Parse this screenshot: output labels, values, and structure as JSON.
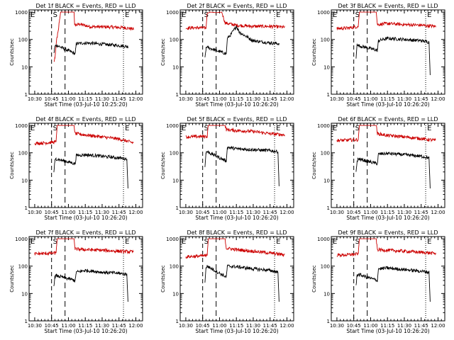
{
  "colors": {
    "events": "#000000",
    "lld": "#cc0000",
    "axis": "#000000"
  },
  "chart_data": [
    {
      "type": "line",
      "title": "Det 1f BLACK = Events, RED = LLD",
      "xlabel": "Start Time (03-Jul-10 10:25:20)",
      "ylabel": "Counts/sec",
      "x_ticks": [
        "10:30",
        "10:45",
        "11:00",
        "11:15",
        "11:30",
        "11:45",
        "12:00"
      ],
      "y_ticks": [
        "1",
        "10",
        "100",
        "1000"
      ],
      "yscale": "log",
      "ylim": [
        1,
        1200
      ],
      "xlim_minutes": [
        -5,
        96
      ],
      "annotations": [
        "E",
        "S",
        "E"
      ],
      "series": [
        {
          "color": "#cc0000",
          "key": [
            [
              17,
              15
            ],
            [
              18,
              20
            ],
            [
              19.5,
              100
            ],
            [
              21,
              200
            ],
            [
              22,
              500
            ],
            [
              23,
              1000
            ],
            [
              35,
              1000
            ],
            [
              35.5,
              330
            ],
            [
              40,
              360
            ],
            [
              50,
              290
            ],
            [
              60,
              290
            ],
            [
              70,
              280
            ],
            [
              80,
              270
            ],
            [
              88,
              240
            ]
          ]
        },
        {
          "color": "#000000",
          "key": [
            [
              17,
              30
            ],
            [
              18,
              55
            ],
            [
              19,
              60
            ],
            [
              20,
              60
            ],
            [
              36,
              30
            ],
            [
              37,
              70
            ],
            [
              45,
              75
            ],
            [
              55,
              70
            ],
            [
              65,
              65
            ],
            [
              75,
              60
            ],
            [
              83,
              55
            ]
          ]
        }
      ]
    },
    {
      "type": "line",
      "title": "Det 2f BLACK = Events, RED = LLD",
      "xlabel": "Start Time (03-Jul-10 10:26:20)",
      "ylabel": "Counts/sec",
      "x_ticks": [
        "10:30",
        "10:45",
        "11:00",
        "11:15",
        "11:30",
        "11:45",
        "12:00"
      ],
      "y_ticks": [
        "1",
        "10",
        "100",
        "1000"
      ],
      "yscale": "log",
      "ylim": [
        1,
        1200
      ],
      "xlim_minutes": [
        -5,
        96
      ],
      "annotations": [
        "E",
        "S",
        "E"
      ],
      "series": [
        {
          "color": "#cc0000",
          "key": [
            [
              0,
              260
            ],
            [
              10,
              270
            ],
            [
              18,
              260
            ],
            [
              19,
              900
            ],
            [
              22,
              1000
            ],
            [
              27,
              950
            ],
            [
              32,
              1000
            ],
            [
              35,
              400
            ],
            [
              45,
              330
            ],
            [
              60,
              300
            ],
            [
              75,
              300
            ],
            [
              88,
              280
            ]
          ]
        },
        {
          "color": "#000000",
          "key": [
            [
              17,
              20
            ],
            [
              18,
              45
            ],
            [
              19,
              55
            ],
            [
              20,
              50
            ],
            [
              36,
              30
            ],
            [
              37,
              110
            ],
            [
              40,
              150
            ],
            [
              45,
              300
            ],
            [
              48,
              180
            ],
            [
              60,
              90
            ],
            [
              75,
              75
            ],
            [
              83,
              70
            ]
          ]
        }
      ]
    },
    {
      "type": "line",
      "title": "Det 3f BLACK = Events, RED = LLD",
      "xlabel": "Start Time (03-Jul-10 10:26:20)",
      "ylabel": "Counts/sec",
      "x_ticks": [
        "10:30",
        "10:45",
        "11:00",
        "11:15",
        "11:30",
        "11:45",
        "12:00"
      ],
      "y_ticks": [
        "1",
        "10",
        "100",
        "1000"
      ],
      "yscale": "log",
      "ylim": [
        1,
        1200
      ],
      "xlim_minutes": [
        -5,
        96
      ],
      "annotations": [
        "E",
        "S",
        "E"
      ],
      "series": [
        {
          "color": "#cc0000",
          "key": [
            [
              0,
              250
            ],
            [
              10,
              260
            ],
            [
              19,
              300
            ],
            [
              20,
              1000
            ],
            [
              35,
              1000
            ],
            [
              36,
              350
            ],
            [
              45,
              380
            ],
            [
              60,
              350
            ],
            [
              75,
              330
            ],
            [
              88,
              300
            ]
          ]
        },
        {
          "color": "#000000",
          "key": [
            [
              17,
              20
            ],
            [
              18,
              70
            ],
            [
              19,
              60
            ],
            [
              36,
              40
            ],
            [
              37,
              90
            ],
            [
              45,
              110
            ],
            [
              60,
              100
            ],
            [
              75,
              90
            ],
            [
              82,
              80
            ],
            [
              83,
              5
            ]
          ]
        }
      ]
    },
    {
      "type": "line",
      "title": "Det 4f BLACK = Events, RED = LLD",
      "xlabel": "Start Time (03-Jul-10 10:26:20)",
      "ylabel": "Counts/sec",
      "x_ticks": [
        "10:30",
        "10:45",
        "11:00",
        "11:15",
        "11:30",
        "11:45",
        "12:00"
      ],
      "y_ticks": [
        "1",
        "10",
        "100",
        "1000"
      ],
      "yscale": "log",
      "ylim": [
        1,
        1200
      ],
      "xlim_minutes": [
        -5,
        96
      ],
      "annotations": [
        "E",
        "S",
        "E"
      ],
      "series": [
        {
          "color": "#cc0000",
          "key": [
            [
              0,
              220
            ],
            [
              10,
              230
            ],
            [
              19,
              250
            ],
            [
              20,
              1000
            ],
            [
              35,
              1000
            ],
            [
              36,
              500
            ],
            [
              45,
              450
            ],
            [
              60,
              380
            ],
            [
              75,
              320
            ],
            [
              88,
              230
            ]
          ]
        },
        {
          "color": "#000000",
          "key": [
            [
              17,
              20
            ],
            [
              18,
              50
            ],
            [
              19,
              60
            ],
            [
              36,
              40
            ],
            [
              37,
              80
            ],
            [
              45,
              85
            ],
            [
              60,
              75
            ],
            [
              75,
              65
            ],
            [
              82,
              60
            ],
            [
              83,
              5
            ]
          ]
        }
      ]
    },
    {
      "type": "line",
      "title": "Det 5f BLACK = Events, RED = LLD",
      "xlabel": "Start Time (03-Jul-10 10:26:20)",
      "ylabel": "Counts/sec",
      "x_ticks": [
        "10:30",
        "10:45",
        "11:00",
        "11:15",
        "11:30",
        "11:45",
        "12:00"
      ],
      "y_ticks": [
        "1",
        "10",
        "100",
        "1000"
      ],
      "yscale": "log",
      "ylim": [
        1,
        1200
      ],
      "xlim_minutes": [
        -5,
        96
      ],
      "annotations": [
        "E",
        "S",
        "E"
      ],
      "series": [
        {
          "color": "#cc0000",
          "key": [
            [
              0,
              380
            ],
            [
              10,
              390
            ],
            [
              19,
              400
            ],
            [
              20,
              1000
            ],
            [
              35,
              1000
            ],
            [
              36,
              700
            ],
            [
              45,
              650
            ],
            [
              60,
              600
            ],
            [
              75,
              500
            ],
            [
              88,
              450
            ]
          ]
        },
        {
          "color": "#000000",
          "key": [
            [
              17,
              30
            ],
            [
              18,
              100
            ],
            [
              19,
              110
            ],
            [
              36,
              50
            ],
            [
              37,
              160
            ],
            [
              45,
              140
            ],
            [
              60,
              130
            ],
            [
              75,
              120
            ],
            [
              82,
              110
            ],
            [
              83,
              6
            ]
          ]
        }
      ]
    },
    {
      "type": "line",
      "title": "Det 6f BLACK = Events, RED = LLD",
      "xlabel": "Start Time (03-Jul-10 10:26:20)",
      "ylabel": "Counts/sec",
      "x_ticks": [
        "10:30",
        "10:45",
        "11:00",
        "11:15",
        "11:30",
        "11:45",
        "12:00"
      ],
      "y_ticks": [
        "1",
        "10",
        "100",
        "1000"
      ],
      "yscale": "log",
      "ylim": [
        1,
        1200
      ],
      "xlim_minutes": [
        -5,
        96
      ],
      "annotations": [
        "E",
        "S",
        "E"
      ],
      "series": [
        {
          "color": "#cc0000",
          "key": [
            [
              0,
              280
            ],
            [
              10,
              290
            ],
            [
              19,
              300
            ],
            [
              20,
              1000
            ],
            [
              35,
              1000
            ],
            [
              36,
              500
            ],
            [
              45,
              430
            ],
            [
              60,
              380
            ],
            [
              75,
              330
            ],
            [
              88,
              280
            ]
          ]
        },
        {
          "color": "#000000",
          "key": [
            [
              17,
              20
            ],
            [
              18,
              50
            ],
            [
              19,
              60
            ],
            [
              36,
              40
            ],
            [
              37,
              90
            ],
            [
              45,
              95
            ],
            [
              60,
              85
            ],
            [
              75,
              75
            ],
            [
              82,
              65
            ],
            [
              83,
              5
            ]
          ]
        }
      ]
    },
    {
      "type": "line",
      "title": "Det 7f BLACK = Events, RED = LLD",
      "xlabel": "Start Time (03-Jul-10 10:26:20)",
      "ylabel": "Counts/sec",
      "x_ticks": [
        "10:30",
        "10:45",
        "11:00",
        "11:15",
        "11:30",
        "11:45",
        "12:00"
      ],
      "y_ticks": [
        "1",
        "10",
        "100",
        "1000"
      ],
      "yscale": "log",
      "ylim": [
        1,
        1200
      ],
      "xlim_minutes": [
        -5,
        96
      ],
      "annotations": [
        "E",
        "S",
        "E"
      ],
      "series": [
        {
          "color": "#cc0000",
          "key": [
            [
              0,
              280
            ],
            [
              10,
              290
            ],
            [
              19,
              300
            ],
            [
              20,
              1000
            ],
            [
              35,
              1000
            ],
            [
              36,
              420
            ],
            [
              45,
              400
            ],
            [
              60,
              380
            ],
            [
              75,
              350
            ],
            [
              88,
              330
            ]
          ]
        },
        {
          "color": "#000000",
          "key": [
            [
              17,
              20
            ],
            [
              18,
              40
            ],
            [
              19,
              45
            ],
            [
              36,
              30
            ],
            [
              37,
              60
            ],
            [
              45,
              70
            ],
            [
              60,
              60
            ],
            [
              75,
              55
            ],
            [
              82,
              50
            ],
            [
              83,
              5
            ]
          ]
        }
      ]
    },
    {
      "type": "line",
      "title": "Det 8f BLACK = Events, RED = LLD",
      "xlabel": "Start Time (03-Jul-10 10:26:20)",
      "ylabel": "Counts/sec",
      "x_ticks": [
        "10:30",
        "10:45",
        "11:00",
        "11:15",
        "11:30",
        "11:45",
        "12:00"
      ],
      "y_ticks": [
        "1",
        "10",
        "100",
        "1000"
      ],
      "yscale": "log",
      "ylim": [
        1,
        1200
      ],
      "xlim_minutes": [
        -5,
        96
      ],
      "annotations": [
        "E",
        "S",
        "E"
      ],
      "series": [
        {
          "color": "#cc0000",
          "key": [
            [
              0,
              220
            ],
            [
              10,
              230
            ],
            [
              19,
              240
            ],
            [
              20,
              1000
            ],
            [
              35,
              1000
            ],
            [
              36,
              450
            ],
            [
              45,
              400
            ],
            [
              60,
              350
            ],
            [
              75,
              300
            ],
            [
              88,
              260
            ]
          ]
        },
        {
          "color": "#000000",
          "key": [
            [
              17,
              25
            ],
            [
              18,
              90
            ],
            [
              19,
              100
            ],
            [
              36,
              40
            ],
            [
              37,
              100
            ],
            [
              45,
              95
            ],
            [
              60,
              80
            ],
            [
              75,
              70
            ],
            [
              82,
              60
            ],
            [
              83,
              5
            ]
          ]
        }
      ]
    },
    {
      "type": "line",
      "title": "Det 9f BLACK = Events, RED = LLD",
      "xlabel": "Start Time (03-Jul-10 10:26:20)",
      "ylabel": "Counts/sec",
      "x_ticks": [
        "10:30",
        "10:45",
        "11:00",
        "11:15",
        "11:30",
        "11:45",
        "12:00"
      ],
      "y_ticks": [
        "1",
        "10",
        "100",
        "1000"
      ],
      "yscale": "log",
      "ylim": [
        1,
        1200
      ],
      "xlim_minutes": [
        -5,
        96
      ],
      "annotations": [
        "E",
        "S",
        "E"
      ],
      "series": [
        {
          "color": "#cc0000",
          "key": [
            [
              0,
              250
            ],
            [
              10,
              260
            ],
            [
              19,
              280
            ],
            [
              20,
              1000
            ],
            [
              35,
              1000
            ],
            [
              36,
              400
            ],
            [
              45,
              380
            ],
            [
              60,
              350
            ],
            [
              75,
              320
            ],
            [
              88,
              290
            ]
          ]
        },
        {
          "color": "#000000",
          "key": [
            [
              17,
              20
            ],
            [
              18,
              45
            ],
            [
              19,
              50
            ],
            [
              36,
              30
            ],
            [
              37,
              80
            ],
            [
              45,
              85
            ],
            [
              60,
              75
            ],
            [
              75,
              65
            ],
            [
              82,
              60
            ],
            [
              83,
              5
            ]
          ]
        }
      ]
    }
  ]
}
